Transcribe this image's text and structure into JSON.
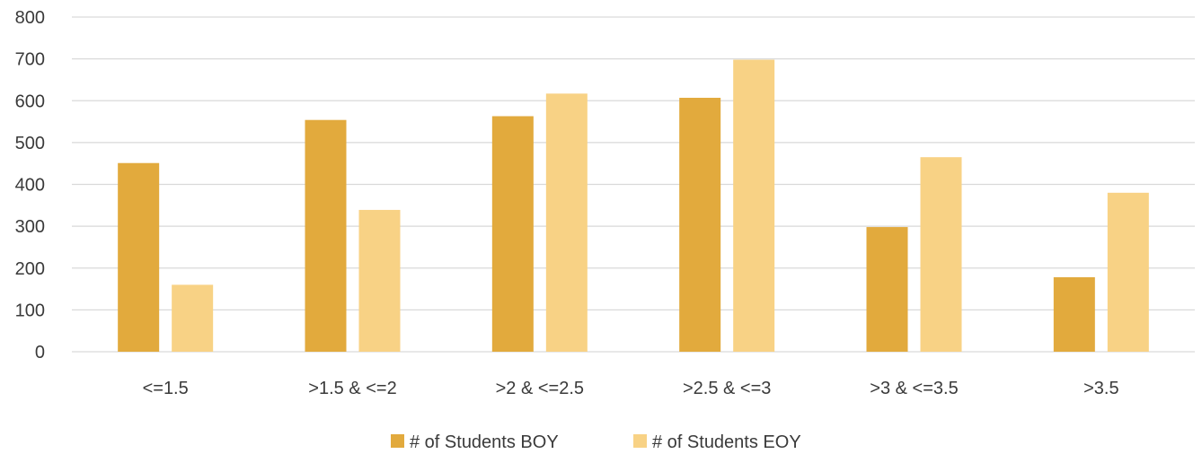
{
  "chart_data": {
    "type": "bar",
    "title": "",
    "xlabel": "",
    "ylabel": "",
    "categories": [
      "<=1.5",
      ">1.5 & <=2",
      ">2 & <=2.5",
      ">2.5 & <=3",
      ">3 & <=3.5",
      ">3.5"
    ],
    "series": [
      {
        "name": "# of Students BOY",
        "color": "#E2AA3D",
        "values": [
          451,
          554,
          563,
          607,
          298,
          178
        ]
      },
      {
        "name": "# of Students EOY",
        "color": "#F8D285",
        "values": [
          160,
          339,
          617,
          698,
          465,
          380
        ]
      }
    ],
    "ylim": [
      0,
      800
    ],
    "yticks": [
      0,
      100,
      200,
      300,
      400,
      500,
      600,
      700,
      800
    ],
    "grid": true,
    "legend": "bottom"
  }
}
